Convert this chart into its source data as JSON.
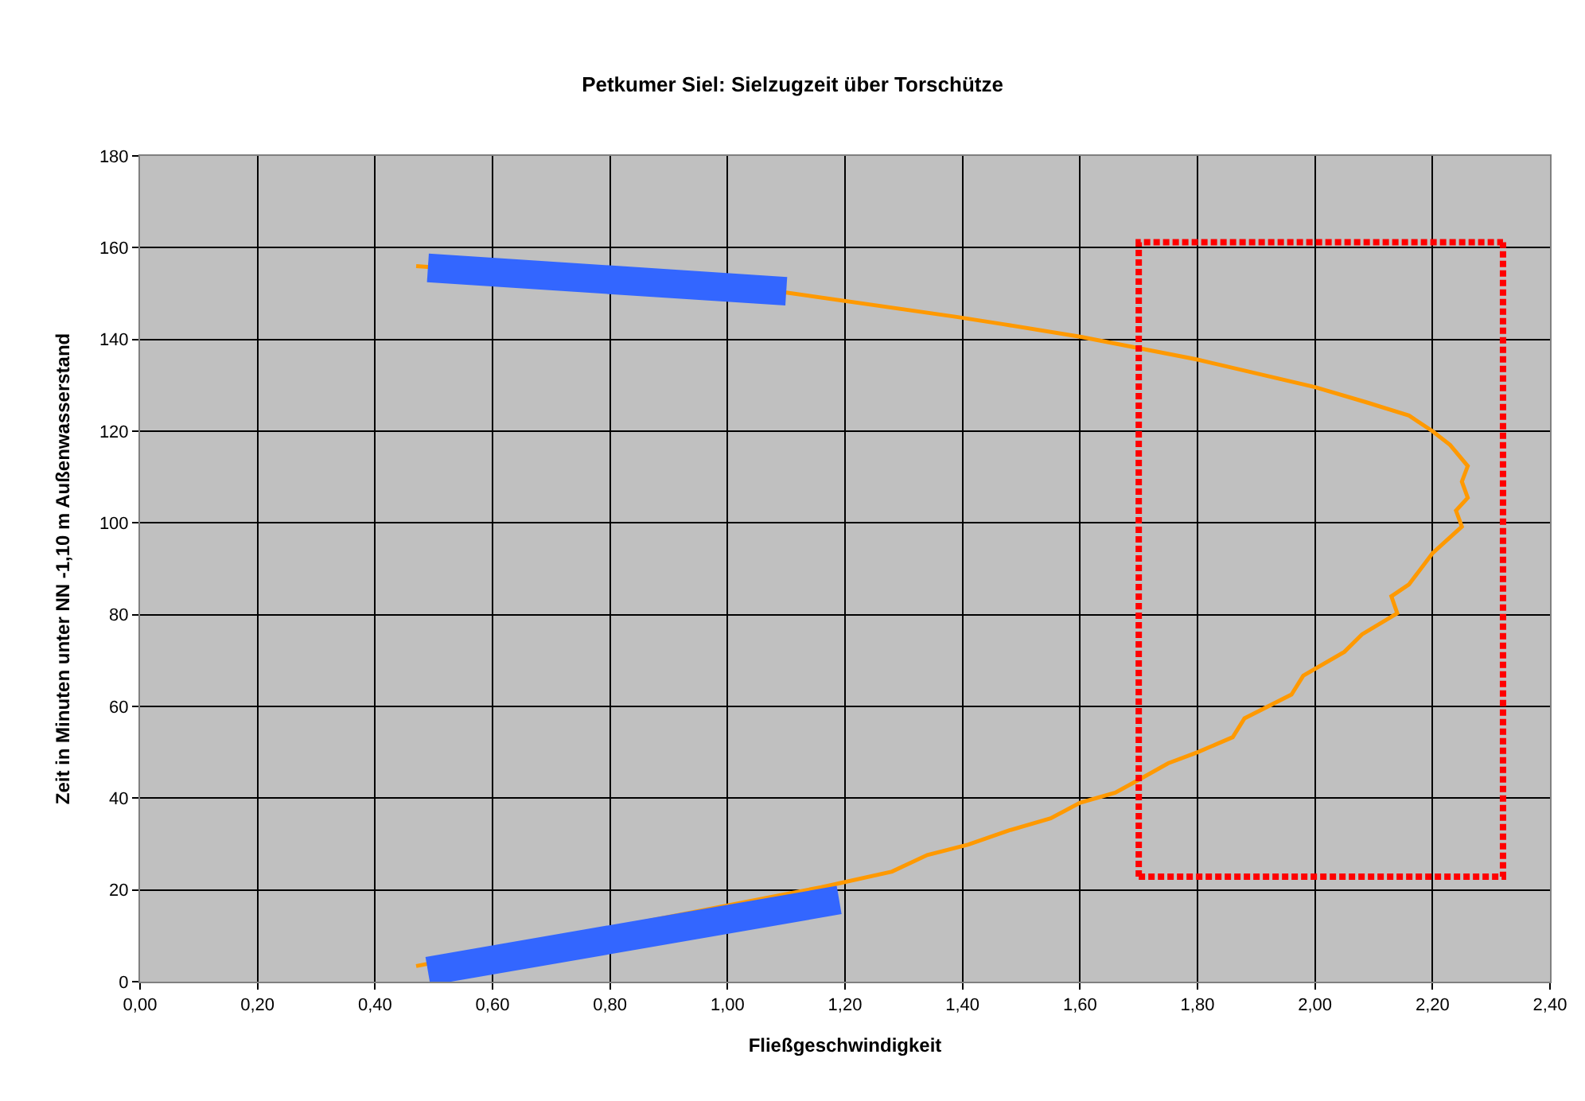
{
  "chart_data": {
    "type": "line",
    "title": "Petkumer Siel: Sielzugzeit über Torschütze",
    "xlabel": "Fließgeschwindigkeit",
    "ylabel": "Zeit in Minuten unter NN -1,10 m Außenwasserstand",
    "xlim": [
      0,
      2.4
    ],
    "xticks": [
      {
        "value": 0,
        "label": "0,00"
      },
      {
        "value": 0.2,
        "label": "0,20"
      },
      {
        "value": 0.4,
        "label": "0,40"
      },
      {
        "value": 0.6,
        "label": "0,60"
      },
      {
        "value": 0.8,
        "label": "0,80"
      },
      {
        "value": 1.0,
        "label": "1,00"
      },
      {
        "value": 1.2,
        "label": "1,20"
      },
      {
        "value": 1.4,
        "label": "1,40"
      },
      {
        "value": 1.6,
        "label": "1,60"
      },
      {
        "value": 1.8,
        "label": "1,80"
      },
      {
        "value": 2.0,
        "label": "2,00"
      },
      {
        "value": 2.2,
        "label": "2,20"
      },
      {
        "value": 2.4,
        "label": "2,40"
      }
    ],
    "ylim": [
      0,
      180
    ],
    "yticks": [
      0,
      20,
      40,
      60,
      80,
      100,
      120,
      140,
      160,
      180
    ],
    "grid": true,
    "marker": "none",
    "series": [
      {
        "color": "#ff9900",
        "line_style": "solid",
        "x": [
          0.47,
          1.16,
          1.28,
          1.34,
          1.41,
          1.48,
          1.55,
          1.6,
          1.66,
          1.7,
          1.75,
          1.8,
          1.86,
          1.88,
          1.96,
          1.98,
          2.05,
          2.08,
          2.14,
          2.13,
          2.16,
          2.2,
          2.25,
          2.24,
          2.26,
          2.25,
          2.26,
          2.23,
          2.2,
          2.16,
          2.09,
          2.0,
          1.8,
          1.6,
          1.47,
          1.39,
          1.1,
          0.47
        ],
        "values": [
          3.4,
          20.6,
          24,
          27.6,
          29.9,
          33,
          35.6,
          39,
          41.2,
          44,
          47.6,
          50,
          53.3,
          57.4,
          62.6,
          66.7,
          71.9,
          75.7,
          80.3,
          84,
          86.6,
          93.4,
          99.2,
          102.7,
          105.5,
          109,
          112.4,
          117,
          120,
          123.4,
          126.2,
          129.6,
          135.6,
          140.6,
          143.3,
          144.9,
          150.2,
          156
        ]
      },
      {
        "color": "#3366ff",
        "line_style": "solid",
        "x": [
          0.49,
          1.1
        ],
        "values": [
          155.6,
          150.5
        ]
      },
      {
        "color": "#3366ff",
        "line_style": "solid",
        "x": [
          0.49,
          1.19
        ],
        "values": [
          2.3,
          17.8
        ]
      },
      {
        "color": "#ff0000",
        "line_style": "dotted",
        "x": [
          1.7,
          1.7,
          2.32
        ],
        "values": [
          22.9,
          161.2,
          161.2
        ]
      },
      {
        "color": "#ff0000",
        "line_style": "dotted",
        "x": [
          1.7,
          2.32,
          2.32
        ],
        "values": [
          22.9,
          22.9,
          161.2
        ]
      }
    ]
  }
}
